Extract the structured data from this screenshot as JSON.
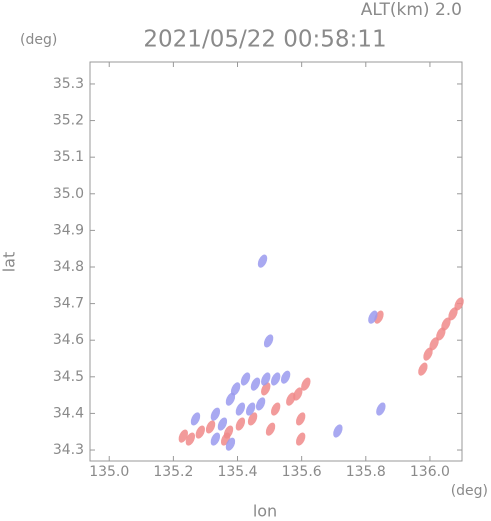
{
  "chart_data": {
    "type": "scatter",
    "header": "ALT(km) 2.0",
    "title": "2021/05/22 00:58:11",
    "y_unit": "(deg)",
    "x_unit": "(deg)",
    "x_label": "lon",
    "y_label": "lat",
    "xlim": [
      134.94,
      136.1
    ],
    "ylim": [
      34.27,
      35.36
    ],
    "xticks": [
      {
        "value": 135.0,
        "label": "135.0"
      },
      135.2,
      135.4,
      135.6,
      135.8,
      {
        "value": 136.0,
        "label": "136.0"
      }
    ],
    "yticks": [
      34.3,
      34.4,
      34.5,
      34.6,
      34.7,
      34.8,
      34.9,
      {
        "value": 35.0,
        "label": "35.0"
      },
      35.1,
      35.2,
      35.3
    ],
    "series": [
      {
        "color": "#f08a8a",
        "x": [
          135.231,
          135.253,
          135.284,
          135.316,
          135.372,
          135.409,
          135.447,
          135.503,
          135.519,
          135.566,
          135.588,
          135.597,
          135.597,
          135.613,
          135.841,
          135.978,
          135.994,
          136.013,
          136.034,
          136.05,
          136.072,
          136.091,
          135.488,
          135.363
        ],
        "values": [
          34.338,
          34.33,
          34.349,
          34.363,
          34.349,
          34.371,
          34.385,
          34.357,
          34.412,
          34.439,
          34.453,
          34.385,
          34.33,
          34.48,
          34.663,
          34.521,
          34.562,
          34.59,
          34.617,
          34.644,
          34.672,
          34.699,
          34.467,
          34.33
        ]
      },
      {
        "color": "#9a9aee",
        "x": [
          135.269,
          135.331,
          135.353,
          135.378,
          135.394,
          135.425,
          135.456,
          135.488,
          135.519,
          135.55,
          135.472,
          135.441,
          135.409,
          135.331,
          135.378,
          135.847,
          135.713,
          135.478,
          135.497,
          135.822
        ],
        "values": [
          34.385,
          34.398,
          34.371,
          34.439,
          34.467,
          34.494,
          34.48,
          34.494,
          34.494,
          34.499,
          34.426,
          34.412,
          34.412,
          34.33,
          34.316,
          34.412,
          34.352,
          34.816,
          34.598,
          34.663
        ]
      }
    ]
  }
}
